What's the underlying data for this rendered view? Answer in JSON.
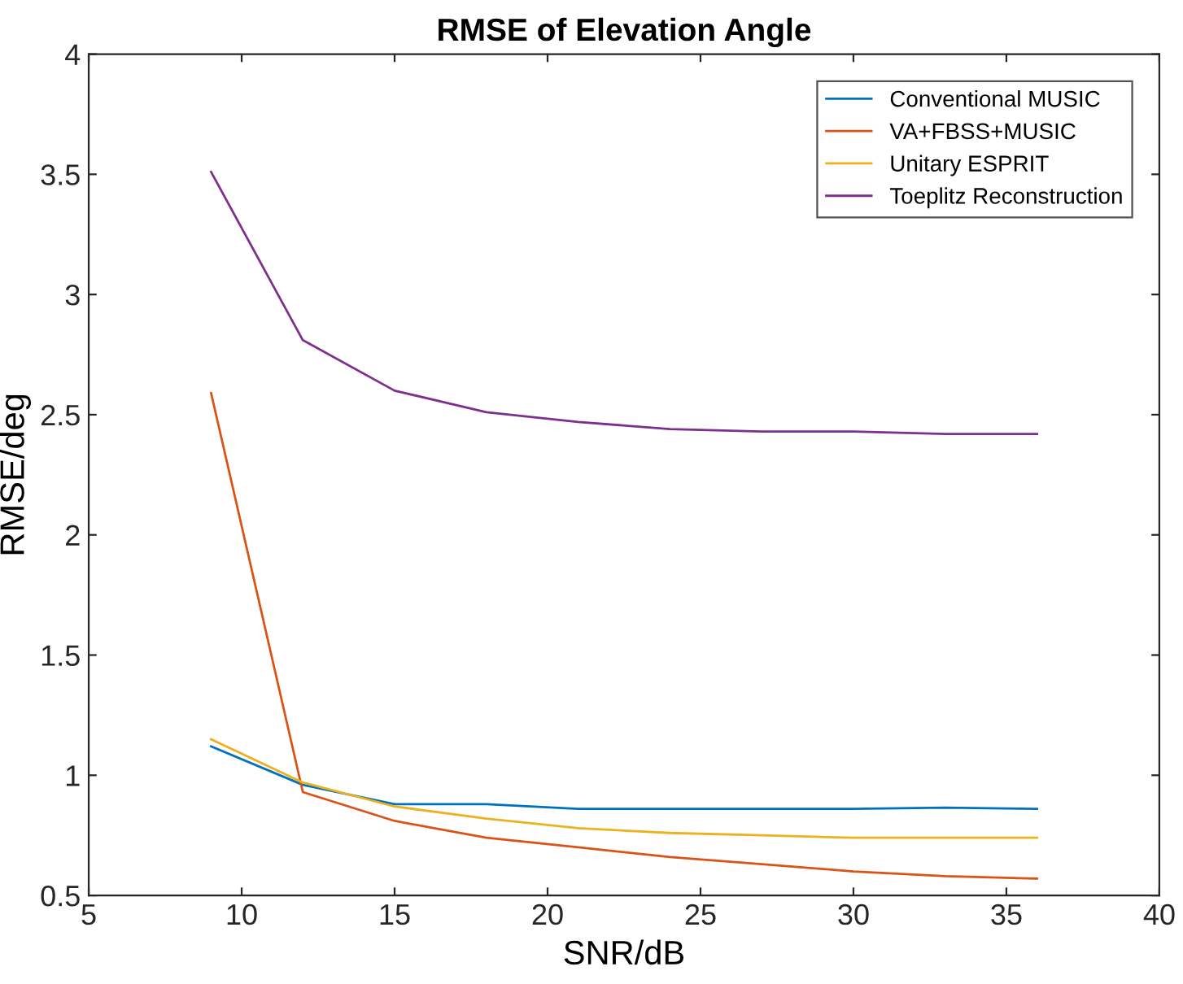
{
  "chart_data": {
    "type": "line",
    "title": "RMSE of Elevation Angle",
    "xlabel": "SNR/dB",
    "ylabel": "RMSE/deg",
    "x": [
      9,
      12,
      15,
      18,
      21,
      24,
      27,
      30,
      33,
      36
    ],
    "series": [
      {
        "name": "Conventional MUSIC",
        "color": "#0072bd",
        "values": [
          1.12,
          0.96,
          0.88,
          0.88,
          0.86,
          0.86,
          0.86,
          0.86,
          0.865,
          0.86
        ]
      },
      {
        "name": "VA+FBSS+MUSIC",
        "color": "#d95319",
        "values": [
          2.59,
          0.93,
          0.81,
          0.74,
          0.7,
          0.66,
          0.63,
          0.6,
          0.58,
          0.57
        ]
      },
      {
        "name": "Unitary ESPRIT",
        "color": "#edb120",
        "values": [
          1.15,
          0.97,
          0.87,
          0.82,
          0.78,
          0.76,
          0.75,
          0.74,
          0.74,
          0.74
        ]
      },
      {
        "name": "Toeplitz Reconstruction",
        "color": "#7e2f8e",
        "values": [
          3.51,
          2.81,
          2.6,
          2.51,
          2.47,
          2.44,
          2.43,
          2.43,
          2.42,
          2.42
        ]
      }
    ],
    "xlim": [
      5,
      40
    ],
    "xticks": [
      5,
      10,
      15,
      20,
      25,
      30,
      35,
      40
    ],
    "ylim": [
      0.5,
      4
    ],
    "yticks": [
      0.5,
      1,
      1.5,
      2,
      2.5,
      3,
      3.5,
      4
    ],
    "grid": false,
    "legend": "top right",
    "marker": "none",
    "line_style": "solid"
  }
}
